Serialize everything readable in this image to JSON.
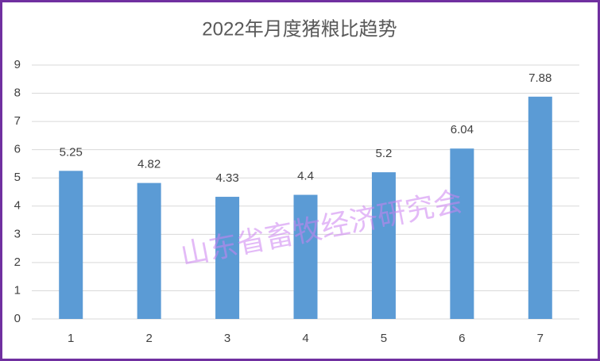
{
  "chart_data": {
    "type": "bar",
    "title": "2022年月度猪粮比趋势",
    "categories": [
      "1",
      "2",
      "3",
      "4",
      "5",
      "6",
      "7"
    ],
    "values": [
      5.25,
      4.82,
      4.33,
      4.4,
      5.2,
      6.04,
      7.88
    ],
    "color": "#5b9bd5",
    "ylim": [
      0,
      9
    ],
    "yticks": [
      0,
      1,
      2,
      3,
      4,
      5,
      6,
      7,
      8,
      9
    ],
    "grid": true,
    "watermark": "山东省畜牧经济研究会"
  }
}
